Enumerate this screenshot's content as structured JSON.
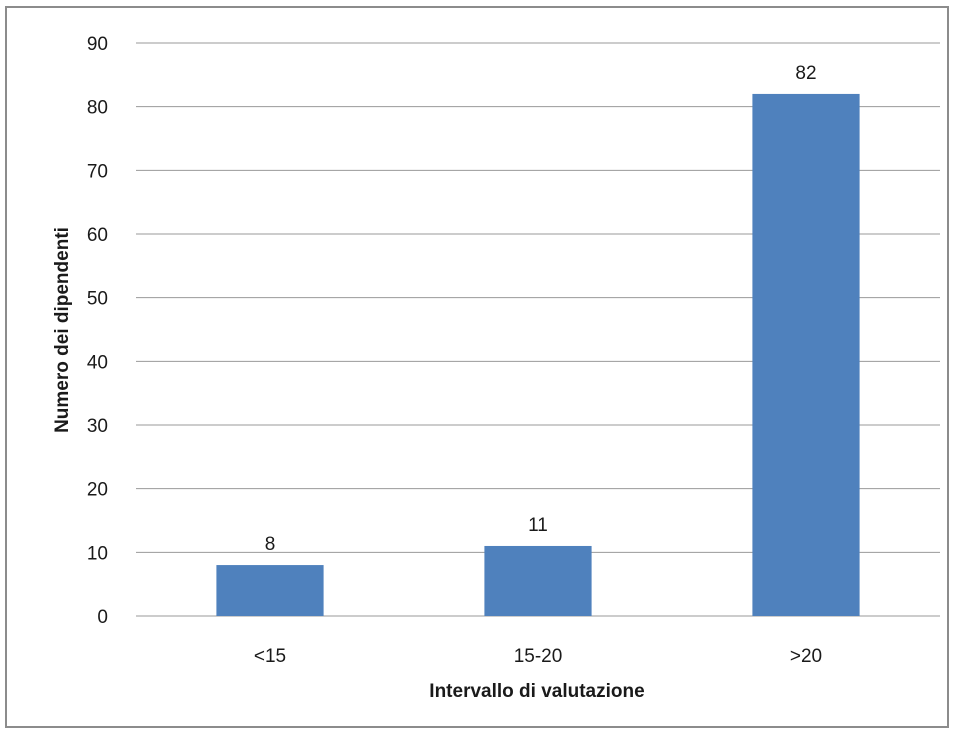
{
  "chart_data": {
    "type": "bar",
    "title": "",
    "xlabel": "Intervallo di  valutazione",
    "ylabel": "Numero dei dipendenti",
    "categories": [
      "<15",
      "15-20",
      ">20"
    ],
    "values": [
      8,
      11,
      82
    ],
    "data_labels": [
      "8",
      "11",
      "82"
    ],
    "ylim": [
      0,
      90
    ],
    "yticks": [
      0,
      10,
      20,
      30,
      40,
      50,
      60,
      70,
      80,
      90
    ],
    "grid": true,
    "legend": "none",
    "bar_color": "#4f81bd"
  }
}
